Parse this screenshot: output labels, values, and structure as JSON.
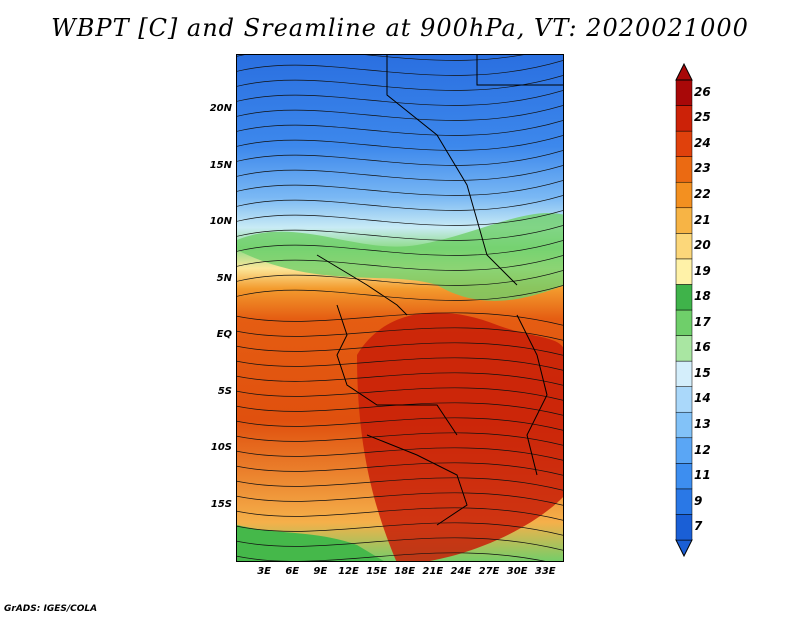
{
  "title": "WBPT [C] and Sreamline at 900hPa, VT: 2020021000",
  "credit": "GrADS: IGES/COLA",
  "map": {
    "lat_ticks": [
      "20N",
      "15N",
      "10N",
      "5N",
      "EQ",
      "5S",
      "10S",
      "15S"
    ],
    "lat_values": [
      20,
      15,
      10,
      5,
      0,
      -5,
      -10,
      -15
    ],
    "lon_ticks": [
      "3E",
      "6E",
      "9E",
      "12E",
      "15E",
      "18E",
      "21E",
      "24E",
      "27E",
      "30E",
      "33E"
    ],
    "lon_values": [
      3,
      6,
      9,
      12,
      15,
      18,
      21,
      24,
      27,
      30,
      33
    ],
    "lat_range": [
      -20,
      25
    ],
    "lon_range": [
      0,
      35
    ]
  },
  "colorbar": {
    "labels": [
      "7",
      "9",
      "11",
      "12",
      "13",
      "14",
      "15",
      "16",
      "17",
      "18",
      "19",
      "20",
      "21",
      "22",
      "23",
      "24",
      "25",
      "26"
    ],
    "colors": [
      "#1a5fd6",
      "#2a78e6",
      "#3d8ef0",
      "#5aa6f5",
      "#82c2f8",
      "#aad8fa",
      "#d4eefb",
      "#a9e6a2",
      "#6fcf6a",
      "#3fb34a",
      "#fff2a8",
      "#fcd77a",
      "#f7b445",
      "#f39020",
      "#eb6a12",
      "#e0410c",
      "#cc2208",
      "#a80808"
    ]
  }
}
